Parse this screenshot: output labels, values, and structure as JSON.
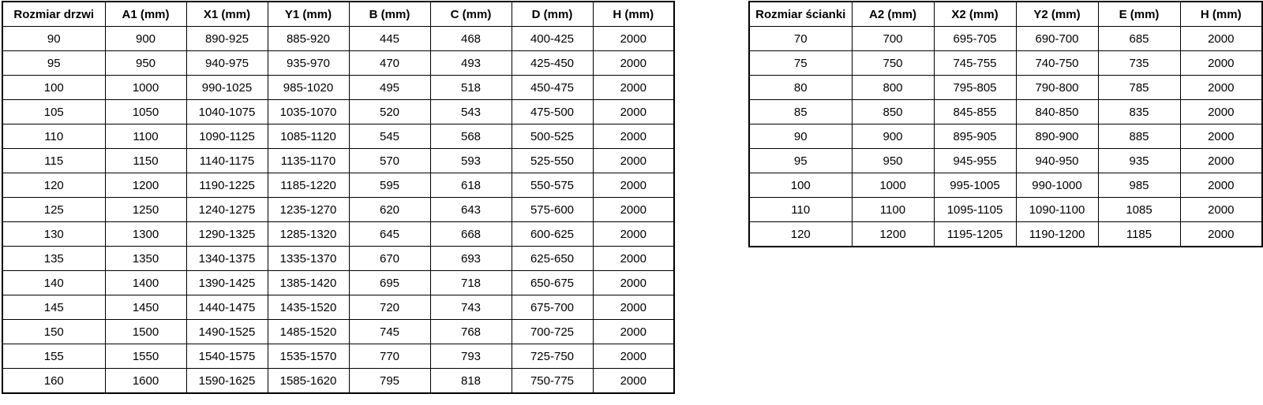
{
  "door_table": {
    "headers": [
      "Rozmiar drzwi",
      "A1 (mm)",
      "X1 (mm)",
      "Y1 (mm)",
      "B (mm)",
      "C (mm)",
      "D (mm)",
      "H (mm)"
    ],
    "rows": [
      [
        "90",
        "900",
        "890-925",
        "885-920",
        "445",
        "468",
        "400-425",
        "2000"
      ],
      [
        "95",
        "950",
        "940-975",
        "935-970",
        "470",
        "493",
        "425-450",
        "2000"
      ],
      [
        "100",
        "1000",
        "990-1025",
        "985-1020",
        "495",
        "518",
        "450-475",
        "2000"
      ],
      [
        "105",
        "1050",
        "1040-1075",
        "1035-1070",
        "520",
        "543",
        "475-500",
        "2000"
      ],
      [
        "110",
        "1100",
        "1090-1125",
        "1085-1120",
        "545",
        "568",
        "500-525",
        "2000"
      ],
      [
        "115",
        "1150",
        "1140-1175",
        "1135-1170",
        "570",
        "593",
        "525-550",
        "2000"
      ],
      [
        "120",
        "1200",
        "1190-1225",
        "1185-1220",
        "595",
        "618",
        "550-575",
        "2000"
      ],
      [
        "125",
        "1250",
        "1240-1275",
        "1235-1270",
        "620",
        "643",
        "575-600",
        "2000"
      ],
      [
        "130",
        "1300",
        "1290-1325",
        "1285-1320",
        "645",
        "668",
        "600-625",
        "2000"
      ],
      [
        "135",
        "1350",
        "1340-1375",
        "1335-1370",
        "670",
        "693",
        "625-650",
        "2000"
      ],
      [
        "140",
        "1400",
        "1390-1425",
        "1385-1420",
        "695",
        "718",
        "650-675",
        "2000"
      ],
      [
        "145",
        "1450",
        "1440-1475",
        "1435-1520",
        "720",
        "743",
        "675-700",
        "2000"
      ],
      [
        "150",
        "1500",
        "1490-1525",
        "1485-1520",
        "745",
        "768",
        "700-725",
        "2000"
      ],
      [
        "155",
        "1550",
        "1540-1575",
        "1535-1570",
        "770",
        "793",
        "725-750",
        "2000"
      ],
      [
        "160",
        "1600",
        "1590-1625",
        "1585-1620",
        "795",
        "818",
        "750-775",
        "2000"
      ]
    ],
    "first_col_width": 130,
    "data_col_width": 103
  },
  "wall_table": {
    "headers": [
      "Rozmiar ścianki",
      "A2 (mm)",
      "X2 (mm)",
      "Y2 (mm)",
      "E (mm)",
      "H (mm)"
    ],
    "rows": [
      [
        "70",
        "700",
        "695-705",
        "690-700",
        "685",
        "2000"
      ],
      [
        "75",
        "750",
        "745-755",
        "740-750",
        "735",
        "2000"
      ],
      [
        "80",
        "800",
        "795-805",
        "790-800",
        "785",
        "2000"
      ],
      [
        "85",
        "850",
        "845-855",
        "840-850",
        "835",
        "2000"
      ],
      [
        "90",
        "900",
        "895-905",
        "890-900",
        "885",
        "2000"
      ],
      [
        "95",
        "950",
        "945-955",
        "940-950",
        "935",
        "2000"
      ],
      [
        "100",
        "1000",
        "995-1005",
        "990-1000",
        "985",
        "2000"
      ],
      [
        "110",
        "1100",
        "1095-1105",
        "1090-1100",
        "1085",
        "2000"
      ],
      [
        "120",
        "1200",
        "1195-1205",
        "1190-1200",
        "1185",
        "2000"
      ]
    ],
    "first_col_width": 130,
    "data_col_width": 104
  },
  "colors": {
    "border": "#000000",
    "text": "#000000",
    "background": "#ffffff"
  }
}
